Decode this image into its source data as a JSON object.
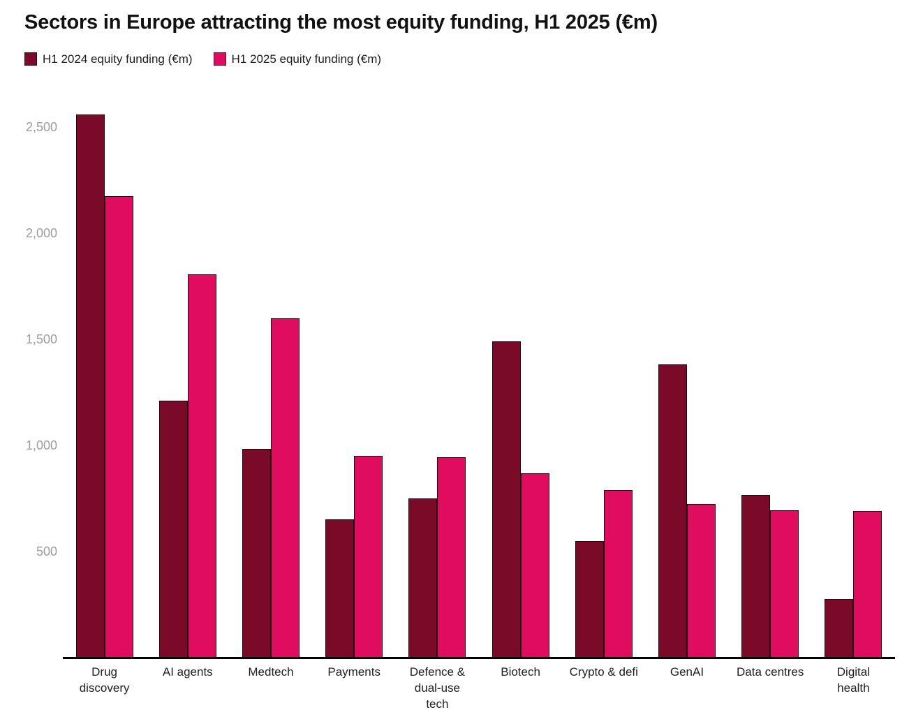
{
  "title": "Sectors in Europe attracting the most equity funding, H1 2025 (€m)",
  "colors": {
    "h1_2024": "#7A0A28",
    "h1_2025": "#DF0C5F",
    "bar_outline": "#16050C",
    "axis_line": "#000000",
    "tick_text": "#9D9D9D",
    "label_text": "#1F1F1F",
    "background": "#FFFFFF"
  },
  "chart_data": {
    "type": "bar",
    "title": "Sectors in Europe attracting the most equity funding, H1 2025 (€m)",
    "xlabel": "",
    "ylabel": "",
    "ylim": [
      0,
      2640
    ],
    "yticks": [
      500,
      1000,
      1500,
      2000,
      2500
    ],
    "ytick_labels": [
      "500",
      "1,000",
      "1,500",
      "2,000",
      "2,500"
    ],
    "grid": false,
    "legend_position": "top-left",
    "categories": [
      "Drug discovery",
      "AI agents",
      "Medtech",
      "Payments",
      "Defence & dual-use tech",
      "Biotech",
      "Crypto & defi",
      "GenAI",
      "Data centres",
      "Digital health"
    ],
    "category_display": [
      "Drug\ndiscovery",
      "AI agents",
      "Medtech",
      "Payments",
      "Defence &\ndual-use\ntech",
      "Biotech",
      "Crypto & defi",
      "GenAI",
      "Data centres",
      "Digital\nhealth"
    ],
    "series": [
      {
        "name": "H1 2024 equity funding (€m)",
        "color": "#7A0A28",
        "values": [
          2560,
          1210,
          985,
          650,
          750,
          1490,
          550,
          1380,
          765,
          275
        ]
      },
      {
        "name": "H1 2025 equity funding (€m)",
        "color": "#DF0C5F",
        "values": [
          2175,
          1805,
          1600,
          950,
          945,
          870,
          790,
          725,
          695,
          690
        ]
      }
    ]
  }
}
